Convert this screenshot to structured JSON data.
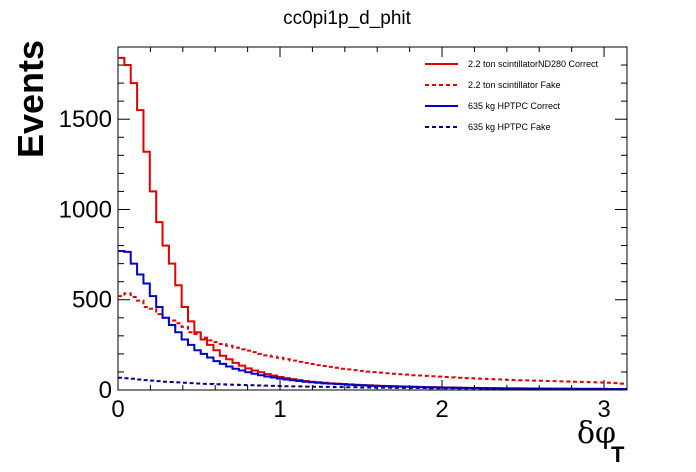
{
  "chart_data": {
    "type": "line",
    "title": "cc0pi1p_d_phit",
    "xlabel": "δφ",
    "xlabel_subscript": "T",
    "ylabel": "Events",
    "xlim": [
      0,
      3.14159
    ],
    "ylim": [
      0,
      1900
    ],
    "x_ticks": [
      0,
      1,
      2,
      3
    ],
    "y_ticks": [
      0,
      500,
      1000,
      1500
    ],
    "grid": false,
    "legend_position": "top-right",
    "bin_width": 0.0392699,
    "series": [
      {
        "name": "2.2 ton scintillatorND280 Correct",
        "color": "#e00000",
        "dash": "solid",
        "values": [
          1840,
          1800,
          1700,
          1550,
          1320,
          1100,
          930,
          800,
          700,
          580,
          460,
          380,
          320,
          280,
          250,
          220,
          190,
          170,
          150,
          135,
          120,
          108,
          98,
          88,
          80,
          72,
          66,
          60,
          55,
          50,
          46,
          43,
          40,
          37,
          35,
          33,
          31,
          29,
          27,
          26,
          24,
          23,
          22,
          21,
          20,
          19,
          18,
          17,
          16,
          15,
          15,
          14,
          13,
          13,
          12,
          12,
          11,
          11,
          10,
          10,
          10,
          9,
          9,
          9,
          8,
          8,
          8,
          8,
          7,
          7,
          7,
          7,
          6,
          6,
          6,
          6,
          6,
          5,
          5,
          5
        ]
      },
      {
        "name": "2.2 ton scintillator Fake",
        "color": "#e00000",
        "dash": "dashed",
        "values": [
          520,
          535,
          515,
          495,
          460,
          450,
          420,
          400,
          385,
          370,
          350,
          320,
          310,
          290,
          275,
          265,
          255,
          245,
          235,
          225,
          218,
          210,
          200,
          192,
          185,
          178,
          170,
          163,
          156,
          150,
          144,
          138,
          133,
          128,
          123,
          118,
          114,
          110,
          106,
          102,
          99,
          96,
          93,
          90,
          87,
          85,
          82,
          80,
          78,
          76,
          74,
          72,
          70,
          68,
          66,
          65,
          63,
          62,
          60,
          59,
          58,
          56,
          55,
          54,
          53,
          52,
          51,
          50,
          49,
          48,
          47,
          46,
          45,
          44,
          43,
          42,
          41,
          40,
          38,
          35
        ]
      },
      {
        "name": "635 kg HPTPC Correct",
        "color": "#0000cc",
        "dash": "solid",
        "values": [
          770,
          765,
          700,
          640,
          590,
          520,
          460,
          400,
          360,
          320,
          280,
          250,
          220,
          200,
          180,
          160,
          145,
          130,
          118,
          108,
          98,
          90,
          82,
          75,
          69,
          63,
          58,
          54,
          50,
          46,
          43,
          40,
          37,
          35,
          33,
          31,
          29,
          27,
          26,
          24,
          23,
          22,
          21,
          20,
          19,
          18,
          17,
          16,
          15,
          15,
          14,
          13,
          13,
          12,
          12,
          11,
          11,
          10,
          10,
          10,
          9,
          9,
          9,
          8,
          8,
          8,
          8,
          7,
          7,
          7,
          7,
          6,
          6,
          6,
          6,
          6,
          5,
          5,
          5,
          5
        ]
      },
      {
        "name": "635 kg HPTPC Fake",
        "color": "#00008b",
        "dash": "dashed",
        "values": [
          68,
          65,
          62,
          58,
          55,
          52,
          49,
          46,
          44,
          42,
          40,
          38,
          36,
          34,
          33,
          32,
          31,
          30,
          29,
          28,
          27,
          26,
          25,
          24,
          23,
          22,
          21,
          20,
          20,
          19,
          18,
          18,
          17,
          17,
          16,
          16,
          15,
          15,
          14,
          14,
          13,
          13,
          13,
          12,
          12,
          12,
          11,
          11,
          11,
          10,
          10,
          10,
          10,
          9,
          9,
          9,
          9,
          8,
          8,
          8,
          8,
          8,
          7,
          7,
          7,
          7,
          7,
          6,
          6,
          6,
          6,
          6,
          6,
          5,
          5,
          5,
          5,
          5,
          5,
          5
        ]
      }
    ]
  }
}
